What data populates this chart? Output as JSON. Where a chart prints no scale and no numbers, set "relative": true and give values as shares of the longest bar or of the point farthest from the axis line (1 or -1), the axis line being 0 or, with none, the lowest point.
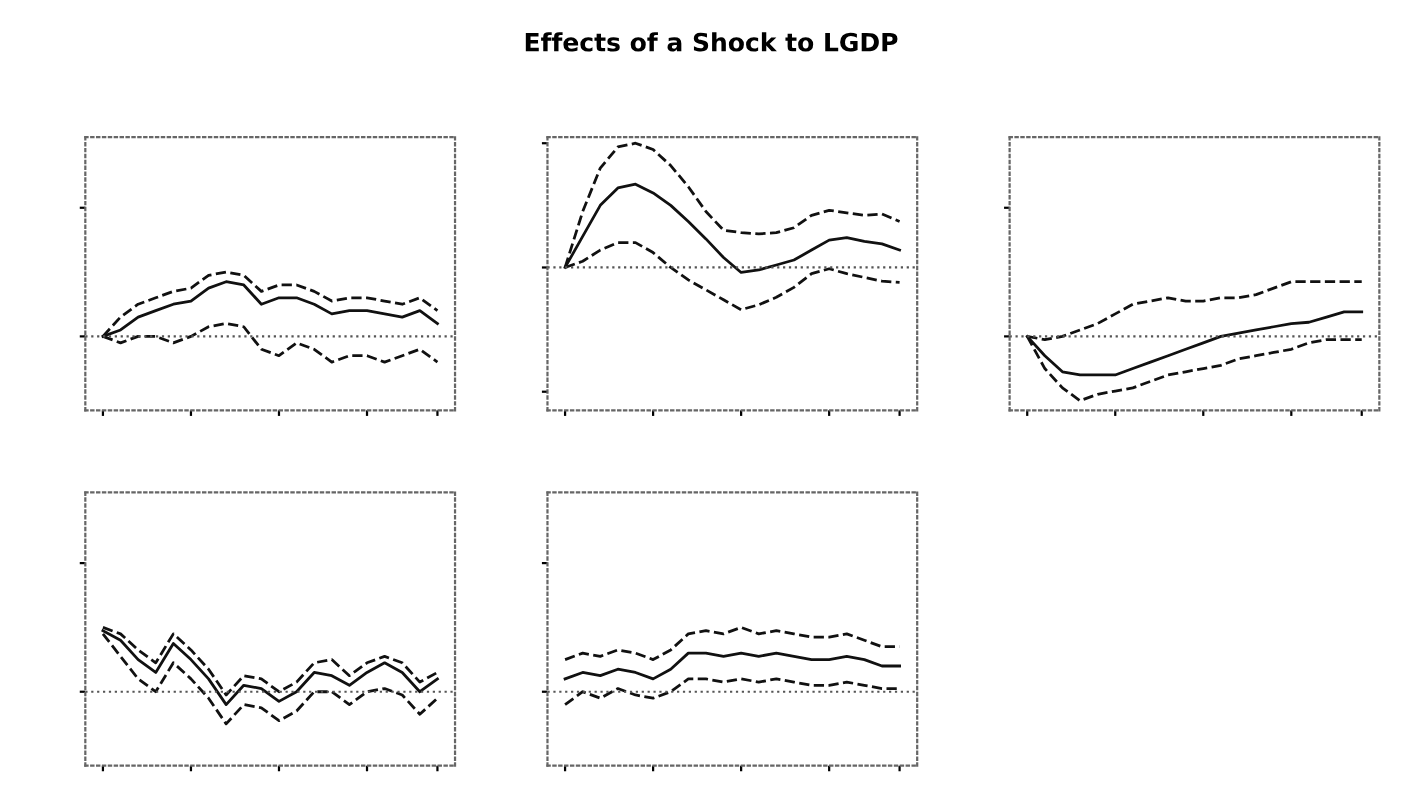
{
  "chart_data": [
    {
      "type": "line",
      "annotations": [
        "Effects of a Shock to LGDP"
      ],
      "relative": true,
      "marker": "none",
      "categories": [
        null,
        null,
        null,
        null,
        null,
        null,
        null,
        null,
        null,
        null,
        null,
        null,
        null,
        null,
        null,
        null,
        null,
        null,
        null,
        null
      ],
      "ref_lines": [
        {
          "axis": "y",
          "value": 0,
          "line_style": "dotted",
          "color": "#555555"
        }
      ],
      "series": [
        {
          "color": "#111111",
          "line_style": "solid",
          "values": [
            0,
            0.1,
            0.3,
            0.4,
            0.5,
            0.55,
            0.75,
            0.85,
            0.8,
            0.5,
            0.6,
            0.6,
            0.5,
            0.35,
            0.4,
            0.4,
            0.35,
            0.3,
            0.4,
            0.2
          ]
        },
        {
          "color": "#111111",
          "line_style": "dashed",
          "values": [
            0,
            0.3,
            0.5,
            0.6,
            0.7,
            0.75,
            0.95,
            1.0,
            0.95,
            0.7,
            0.8,
            0.8,
            0.7,
            0.55,
            0.6,
            0.6,
            0.55,
            0.5,
            0.6,
            0.4
          ]
        },
        {
          "color": "#111111",
          "line_style": "dashed",
          "values": [
            0,
            -0.1,
            0.0,
            0.0,
            -0.1,
            0.0,
            0.15,
            0.2,
            0.15,
            -0.2,
            -0.3,
            -0.1,
            -0.2,
            -0.4,
            -0.3,
            -0.3,
            -0.4,
            -0.3,
            -0.2,
            -0.4
          ]
        }
      ]
    },
    {
      "type": "line",
      "relative": true,
      "marker": "none",
      "categories": [
        null,
        null,
        null,
        null,
        null,
        null,
        null,
        null,
        null,
        null,
        null,
        null,
        null,
        null,
        null,
        null,
        null,
        null,
        null,
        null
      ],
      "ref_lines": [
        {
          "axis": "y",
          "value": 0,
          "line_style": "dotted",
          "color": "#555555"
        }
      ],
      "series": [
        {
          "color": "#111111",
          "line_style": "solid",
          "values": [
            0,
            0.25,
            0.5,
            0.64,
            0.67,
            0.6,
            0.5,
            0.37,
            0.23,
            0.08,
            -0.04,
            -0.02,
            0.02,
            0.06,
            0.14,
            0.22,
            0.24,
            0.21,
            0.19,
            0.14
          ]
        },
        {
          "color": "#111111",
          "line_style": "dashed",
          "values": [
            0,
            0.45,
            0.8,
            0.97,
            1.0,
            0.95,
            0.82,
            0.65,
            0.45,
            0.3,
            0.28,
            0.27,
            0.28,
            0.32,
            0.42,
            0.46,
            0.44,
            0.42,
            0.43,
            0.37
          ]
        },
        {
          "color": "#111111",
          "line_style": "dashed",
          "values": [
            0,
            0.05,
            0.14,
            0.2,
            0.2,
            0.12,
            0.0,
            -0.1,
            -0.18,
            -0.26,
            -0.34,
            -0.3,
            -0.24,
            -0.16,
            -0.05,
            -0.01,
            -0.05,
            -0.08,
            -0.11,
            -0.12
          ]
        }
      ]
    },
    {
      "type": "line",
      "relative": true,
      "marker": "none",
      "categories": [
        null,
        null,
        null,
        null,
        null,
        null,
        null,
        null,
        null,
        null,
        null,
        null,
        null,
        null,
        null,
        null,
        null,
        null,
        null,
        null
      ],
      "ref_lines": [
        {
          "axis": "y",
          "value": 0,
          "line_style": "dotted",
          "color": "#555555"
        }
      ],
      "series": [
        {
          "color": "#111111",
          "line_style": "solid",
          "values": [
            0,
            -0.3,
            -0.55,
            -0.6,
            -0.6,
            -0.6,
            -0.5,
            -0.4,
            -0.3,
            -0.2,
            -0.1,
            0,
            0.05,
            0.1,
            0.15,
            0.2,
            0.22,
            0.3,
            0.38,
            0.38
          ]
        },
        {
          "color": "#111111",
          "line_style": "dashed",
          "values": [
            0,
            -0.05,
            0,
            0.1,
            0.2,
            0.35,
            0.5,
            0.55,
            0.6,
            0.55,
            0.55,
            0.6,
            0.6,
            0.65,
            0.75,
            0.85,
            0.85,
            0.85,
            0.85,
            0.85
          ]
        },
        {
          "color": "#111111",
          "line_style": "dashed",
          "values": [
            0,
            -0.5,
            -0.8,
            -1,
            -0.9,
            -0.85,
            -0.8,
            -0.7,
            -0.6,
            -0.55,
            -0.5,
            -0.45,
            -0.35,
            -0.3,
            -0.25,
            -0.2,
            -0.1,
            -0.05,
            -0.05,
            -0.05
          ]
        }
      ]
    },
    {
      "type": "line",
      "relative": true,
      "marker": "none",
      "categories": [
        null,
        null,
        null,
        null,
        null,
        null,
        null,
        null,
        null,
        null,
        null,
        null,
        null,
        null,
        null,
        null,
        null,
        null,
        null,
        null
      ],
      "ref_lines": [
        {
          "axis": "y",
          "value": 0,
          "line_style": "dotted",
          "color": "#555555"
        }
      ],
      "series": [
        {
          "color": "#111111",
          "line_style": "solid",
          "values": [
            0.95,
            0.8,
            0.5,
            0.3,
            0.75,
            0.5,
            0.2,
            -0.2,
            0.1,
            0.05,
            -0.15,
            0.0,
            0.3,
            0.25,
            0.1,
            0.3,
            0.45,
            0.3,
            0.0,
            0.2
          ]
        },
        {
          "color": "#111111",
          "line_style": "dashed",
          "values": [
            1.0,
            0.9,
            0.65,
            0.45,
            0.9,
            0.65,
            0.35,
            -0.05,
            0.25,
            0.2,
            0.0,
            0.15,
            0.45,
            0.5,
            0.25,
            0.45,
            0.55,
            0.45,
            0.15,
            0.3
          ]
        },
        {
          "color": "#111111",
          "line_style": "dashed",
          "values": [
            0.9,
            0.55,
            0.2,
            0.0,
            0.45,
            0.2,
            -0.1,
            -0.5,
            -0.2,
            -0.25,
            -0.45,
            -0.3,
            0.0,
            0.0,
            -0.2,
            0.0,
            0.05,
            -0.05,
            -0.35,
            -0.1
          ]
        }
      ]
    },
    {
      "type": "line",
      "relative": true,
      "marker": "none",
      "categories": [
        null,
        null,
        null,
        null,
        null,
        null,
        null,
        null,
        null,
        null,
        null,
        null,
        null,
        null,
        null,
        null,
        null,
        null,
        null,
        null
      ],
      "ref_lines": [
        {
          "axis": "y",
          "value": 0,
          "line_style": "dotted",
          "color": "#555555"
        }
      ],
      "series": [
        {
          "color": "#111111",
          "line_style": "solid",
          "values": [
            0.2,
            0.3,
            0.25,
            0.35,
            0.3,
            0.2,
            0.35,
            0.6,
            0.6,
            0.55,
            0.6,
            0.55,
            0.6,
            0.55,
            0.5,
            0.5,
            0.55,
            0.5,
            0.4,
            0.4
          ]
        },
        {
          "color": "#111111",
          "line_style": "dashed",
          "values": [
            0.5,
            0.6,
            0.55,
            0.65,
            0.6,
            0.5,
            0.65,
            0.9,
            0.95,
            0.9,
            1.0,
            0.9,
            0.95,
            0.9,
            0.85,
            0.85,
            0.9,
            0.8,
            0.7,
            0.7
          ]
        },
        {
          "color": "#111111",
          "line_style": "dashed",
          "values": [
            -0.2,
            0.0,
            -0.1,
            0.05,
            -0.05,
            -0.1,
            0.0,
            0.2,
            0.2,
            0.15,
            0.2,
            0.15,
            0.2,
            0.15,
            0.1,
            0.1,
            0.15,
            0.1,
            0.05,
            0.05
          ]
        }
      ]
    }
  ]
}
